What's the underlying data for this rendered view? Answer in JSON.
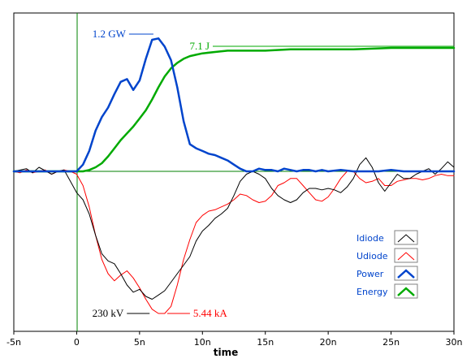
{
  "chart_data": {
    "type": "line",
    "title": "",
    "xlabel": "time",
    "ylabel": "",
    "xlim": [
      -5,
      30
    ],
    "x_unit": "ns",
    "x_ticks": [
      {
        "value": -5,
        "label": "-5n"
      },
      {
        "value": 0,
        "label": "0"
      },
      {
        "value": 5,
        "label": "5n"
      },
      {
        "value": 10,
        "label": "10n"
      },
      {
        "value": 15,
        "label": "15n"
      },
      {
        "value": 20,
        "label": "20n"
      },
      {
        "value": 25,
        "label": "25n"
      },
      {
        "value": 30,
        "label": "30n"
      }
    ],
    "ylim": [
      -1.0,
      1.1
    ],
    "y_note": "normalized waveform amplitude; each trace scaled to its own peak (annotated)",
    "grid": false,
    "legend_position": "bottom-right",
    "annotations": [
      {
        "text": "1.2 GW",
        "series": "Power",
        "x": 6.1,
        "y": 1.0
      },
      {
        "text": "7.1 J",
        "series": "Energy",
        "x": 30.0,
        "y": 0.94
      },
      {
        "text": "230 kV",
        "series": "Idiode",
        "x": 5.8,
        "y": -1.0
      },
      {
        "text": "5.44 kA",
        "series": "Udiode",
        "x": 7.2,
        "y": -1.0
      }
    ],
    "series": [
      {
        "name": "Idiode",
        "color": "#000000",
        "points": [
          [
            -5,
            0.0
          ],
          [
            -4,
            0.02
          ],
          [
            -3.5,
            -0.01
          ],
          [
            -3,
            0.03
          ],
          [
            -2,
            -0.02
          ],
          [
            -1.5,
            0.0
          ],
          [
            -1,
            0.01
          ],
          [
            -0.5,
            -0.07
          ],
          [
            0,
            -0.15
          ],
          [
            0.5,
            -0.2
          ],
          [
            1,
            -0.3
          ],
          [
            1.5,
            -0.45
          ],
          [
            2,
            -0.58
          ],
          [
            2.5,
            -0.63
          ],
          [
            3,
            -0.65
          ],
          [
            3.5,
            -0.72
          ],
          [
            4,
            -0.8
          ],
          [
            4.5,
            -0.85
          ],
          [
            5,
            -0.83
          ],
          [
            5.5,
            -0.88
          ],
          [
            6,
            -0.9
          ],
          [
            6.5,
            -0.87
          ],
          [
            7,
            -0.84
          ],
          [
            7.5,
            -0.78
          ],
          [
            8,
            -0.72
          ],
          [
            8.5,
            -0.66
          ],
          [
            9,
            -0.6
          ],
          [
            9.5,
            -0.49
          ],
          [
            10,
            -0.42
          ],
          [
            10.5,
            -0.38
          ],
          [
            11,
            -0.33
          ],
          [
            11.5,
            -0.3
          ],
          [
            12,
            -0.26
          ],
          [
            12.5,
            -0.17
          ],
          [
            13,
            -0.07
          ],
          [
            13.5,
            -0.02
          ],
          [
            14,
            0.0
          ],
          [
            14.5,
            -0.02
          ],
          [
            15,
            -0.05
          ],
          [
            15.5,
            -0.12
          ],
          [
            16,
            -0.17
          ],
          [
            16.5,
            -0.2
          ],
          [
            17,
            -0.22
          ],
          [
            17.5,
            -0.2
          ],
          [
            18,
            -0.15
          ],
          [
            18.5,
            -0.12
          ],
          [
            19,
            -0.12
          ],
          [
            19.5,
            -0.13
          ],
          [
            20,
            -0.12
          ],
          [
            20.5,
            -0.13
          ],
          [
            21,
            -0.15
          ],
          [
            21.5,
            -0.11
          ],
          [
            22,
            -0.05
          ],
          [
            22.5,
            0.05
          ],
          [
            23,
            0.1
          ],
          [
            23.5,
            0.03
          ],
          [
            24,
            -0.08
          ],
          [
            24.5,
            -0.14
          ],
          [
            25,
            -0.08
          ],
          [
            25.5,
            -0.02
          ],
          [
            26,
            -0.05
          ],
          [
            26.5,
            -0.05
          ],
          [
            27,
            -0.02
          ],
          [
            27.5,
            0.0
          ],
          [
            28,
            0.02
          ],
          [
            28.5,
            -0.02
          ],
          [
            29,
            0.02
          ],
          [
            29.5,
            0.07
          ],
          [
            30,
            0.03
          ]
        ]
      },
      {
        "name": "Udiode",
        "color": "#ff0000",
        "points": [
          [
            -5,
            0.0
          ],
          [
            -4.5,
            -0.01
          ],
          [
            -4,
            0.01
          ],
          [
            -3.5,
            -0.01
          ],
          [
            -3,
            0.0
          ],
          [
            -2.5,
            0.01
          ],
          [
            -2,
            -0.02
          ],
          [
            -1.5,
            0.0
          ],
          [
            -1,
            0.01
          ],
          [
            -0.5,
            0.0
          ],
          [
            0,
            -0.02
          ],
          [
            0.5,
            -0.1
          ],
          [
            1,
            -0.25
          ],
          [
            1.5,
            -0.45
          ],
          [
            2,
            -0.62
          ],
          [
            2.5,
            -0.72
          ],
          [
            3,
            -0.77
          ],
          [
            3.5,
            -0.73
          ],
          [
            4,
            -0.7
          ],
          [
            4.5,
            -0.75
          ],
          [
            5,
            -0.82
          ],
          [
            5.5,
            -0.9
          ],
          [
            6,
            -0.97
          ],
          [
            6.5,
            -1.0
          ],
          [
            7,
            -1.0
          ],
          [
            7.5,
            -0.95
          ],
          [
            8,
            -0.8
          ],
          [
            8.5,
            -0.62
          ],
          [
            9,
            -0.48
          ],
          [
            9.5,
            -0.36
          ],
          [
            10,
            -0.31
          ],
          [
            10.5,
            -0.28
          ],
          [
            11,
            -0.27
          ],
          [
            11.5,
            -0.25
          ],
          [
            12,
            -0.23
          ],
          [
            12.5,
            -0.2
          ],
          [
            13,
            -0.16
          ],
          [
            13.5,
            -0.17
          ],
          [
            14,
            -0.2
          ],
          [
            14.5,
            -0.22
          ],
          [
            15,
            -0.21
          ],
          [
            15.5,
            -0.17
          ],
          [
            16,
            -0.1
          ],
          [
            16.5,
            -0.08
          ],
          [
            17,
            -0.05
          ],
          [
            17.5,
            -0.05
          ],
          [
            18,
            -0.1
          ],
          [
            18.5,
            -0.15
          ],
          [
            19,
            -0.2
          ],
          [
            19.5,
            -0.21
          ],
          [
            20,
            -0.18
          ],
          [
            20.5,
            -0.12
          ],
          [
            21,
            -0.05
          ],
          [
            21.5,
            0.0
          ],
          [
            22,
            0.0
          ],
          [
            22.5,
            -0.05
          ],
          [
            23,
            -0.08
          ],
          [
            23.5,
            -0.07
          ],
          [
            24,
            -0.05
          ],
          [
            24.5,
            -0.1
          ],
          [
            25,
            -0.1
          ],
          [
            25.5,
            -0.07
          ],
          [
            26,
            -0.06
          ],
          [
            26.5,
            -0.05
          ],
          [
            27,
            -0.05
          ],
          [
            27.5,
            -0.06
          ],
          [
            28,
            -0.05
          ],
          [
            28.5,
            -0.03
          ],
          [
            29,
            -0.02
          ],
          [
            29.5,
            -0.03
          ],
          [
            30,
            -0.03
          ]
        ]
      },
      {
        "name": "Power",
        "color": "#0044cc",
        "points": [
          [
            -5,
            0.0
          ],
          [
            -3,
            0.0
          ],
          [
            -1,
            0.0
          ],
          [
            0,
            0.0
          ],
          [
            0.5,
            0.05
          ],
          [
            1,
            0.15
          ],
          [
            1.5,
            0.3
          ],
          [
            2,
            0.4
          ],
          [
            2.5,
            0.47
          ],
          [
            3,
            0.57
          ],
          [
            3.5,
            0.66
          ],
          [
            4,
            0.68
          ],
          [
            4.5,
            0.6
          ],
          [
            5,
            0.67
          ],
          [
            5.5,
            0.83
          ],
          [
            6,
            0.97
          ],
          [
            6.5,
            0.98
          ],
          [
            7,
            0.92
          ],
          [
            7.5,
            0.82
          ],
          [
            8,
            0.62
          ],
          [
            8.5,
            0.37
          ],
          [
            9,
            0.2
          ],
          [
            9.5,
            0.17
          ],
          [
            10,
            0.15
          ],
          [
            10.5,
            0.13
          ],
          [
            11,
            0.12
          ],
          [
            11.5,
            0.1
          ],
          [
            12,
            0.08
          ],
          [
            12.5,
            0.05
          ],
          [
            13,
            0.02
          ],
          [
            13.5,
            0.0
          ],
          [
            14,
            0.0
          ],
          [
            14.5,
            0.02
          ],
          [
            15,
            0.01
          ],
          [
            15.5,
            0.01
          ],
          [
            16,
            0.0
          ],
          [
            16.5,
            0.02
          ],
          [
            17,
            0.01
          ],
          [
            17.5,
            0.0
          ],
          [
            18,
            0.01
          ],
          [
            18.5,
            0.01
          ],
          [
            19,
            0.0
          ],
          [
            19.5,
            0.01
          ],
          [
            20,
            0.0
          ],
          [
            21,
            0.01
          ],
          [
            22,
            0.0
          ],
          [
            23,
            0.0
          ],
          [
            24,
            0.0
          ],
          [
            25,
            0.01
          ],
          [
            26,
            0.0
          ],
          [
            27,
            0.0
          ],
          [
            28,
            0.0
          ],
          [
            29,
            0.0
          ],
          [
            30,
            0.0
          ]
        ]
      },
      {
        "name": "Energy",
        "color": "#00aa00",
        "points": [
          [
            -5,
            0.0
          ],
          [
            -3,
            0.0
          ],
          [
            -1,
            0.0
          ],
          [
            0,
            0.0
          ],
          [
            0.5,
            0.0
          ],
          [
            1,
            0.01
          ],
          [
            1.5,
            0.03
          ],
          [
            2,
            0.06
          ],
          [
            2.5,
            0.11
          ],
          [
            3,
            0.17
          ],
          [
            3.5,
            0.23
          ],
          [
            4,
            0.28
          ],
          [
            4.5,
            0.33
          ],
          [
            5,
            0.39
          ],
          [
            5.5,
            0.45
          ],
          [
            6,
            0.53
          ],
          [
            6.5,
            0.62
          ],
          [
            7,
            0.7
          ],
          [
            7.5,
            0.76
          ],
          [
            8,
            0.8
          ],
          [
            8.5,
            0.83
          ],
          [
            9,
            0.85
          ],
          [
            9.5,
            0.86
          ],
          [
            10,
            0.87
          ],
          [
            11,
            0.88
          ],
          [
            12,
            0.89
          ],
          [
            13,
            0.89
          ],
          [
            14,
            0.89
          ],
          [
            15,
            0.89
          ],
          [
            17,
            0.9
          ],
          [
            20,
            0.9
          ],
          [
            22,
            0.9
          ],
          [
            25,
            0.91
          ],
          [
            28,
            0.91
          ],
          [
            30,
            0.91
          ]
        ]
      }
    ]
  }
}
